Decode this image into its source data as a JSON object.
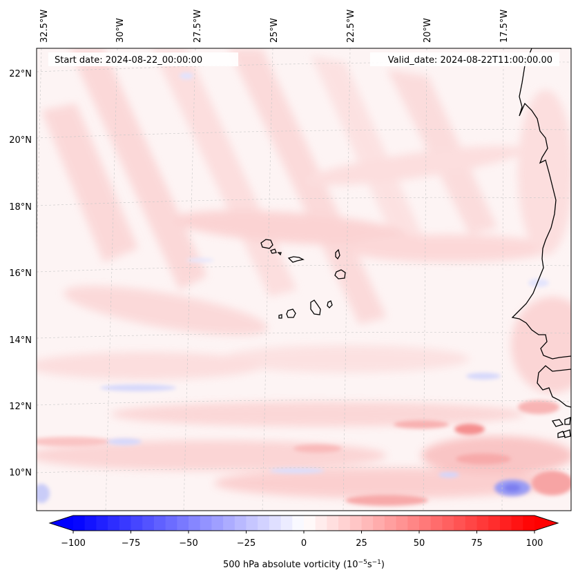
{
  "map": {
    "start_date_text": "Start date: 2024-08-22_00:00:00",
    "valid_date_text": "Valid_date: 2024-08-22T11:00:00.00",
    "lon_labels": [
      "32.5°W",
      "30°W",
      "27.5°W",
      "25°W",
      "22.5°W",
      "20°W",
      "17.5°W"
    ],
    "lat_labels": [
      "22°N",
      "20°N",
      "18°N",
      "16°N",
      "14°N",
      "12°N",
      "10°N"
    ],
    "field": {
      "variable": "500 hPa absolute vorticity",
      "background_color": "#fdf3f3",
      "positive_color": "#ff0000",
      "negative_color": "#0000ff"
    },
    "coastline_color": "#000000",
    "gridline_color": "#c8c8c8"
  },
  "colorbar": {
    "ticks": [
      "−100",
      "−75",
      "−50",
      "−25",
      "0",
      "25",
      "50",
      "75",
      "100"
    ],
    "min": -100,
    "max": 100,
    "label_prefix": "500 hPa absolute vorticity (10",
    "label_exp1": "−5",
    "label_mid": "s",
    "label_exp2": "−1",
    "label_suffix": ")"
  }
}
